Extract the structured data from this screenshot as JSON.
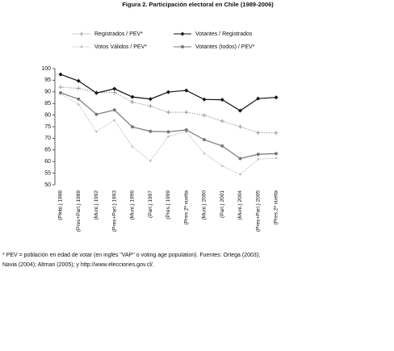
{
  "chart_data": {
    "type": "line",
    "title": "Figura 2. Participación electoral en Chile (1989-2006)",
    "categories": [
      "(Plebi.) 1988",
      "(Pres+Parl.) 1989",
      "(Muni.) 1992",
      "(Pres+Parl.) 1993",
      "(Muni.) 1996",
      "(Parl.) 1997",
      "(Pres.) 1999",
      "(Pres.2ª vuelta",
      "(Muni.) 2000",
      "(Parl.) 2001",
      "(Muni.) 2004",
      "(Pres+Parl.) 2005",
      "(Pres.2ª vuelta"
    ],
    "series": [
      {
        "name": "Registrados / PEV*",
        "color": "#999999",
        "dashed": true,
        "marker": "plus",
        "values": [
          92,
          91.5,
          89.8,
          89.7,
          85.6,
          83.9,
          81.2,
          81.2,
          79.9,
          77.4,
          75,
          72.4,
          72.3
        ]
      },
      {
        "name": "Votantes / Registrados",
        "color": "#111111",
        "dashed": false,
        "marker": "diamond",
        "values": [
          97.5,
          94.7,
          89.5,
          91.3,
          87.8,
          86.9,
          89.9,
          90.6,
          86.7,
          86.6,
          81.9,
          87.1,
          87.6
        ]
      },
      {
        "name": "Votos Válidos / PEV*",
        "color": "#bbbbbb",
        "dashed": true,
        "marker": "dot",
        "values": [
          89.2,
          84.6,
          72.9,
          77.8,
          66.4,
          60.3,
          70.8,
          72.8,
          63.5,
          58.1,
          54.5,
          61,
          61.5
        ]
      },
      {
        "name": "Votantes (todos) / PEV*",
        "color": "#777777",
        "dashed": false,
        "marker": "circle",
        "values": [
          89.6,
          86.9,
          80.3,
          82.2,
          74.9,
          73,
          72.8,
          73.6,
          69.4,
          66.7,
          61.3,
          63.1,
          63.4
        ]
      }
    ],
    "ylim": [
      50,
      100
    ],
    "yticks": [
      50,
      55,
      60,
      65,
      70,
      75,
      80,
      85,
      90,
      95,
      100
    ],
    "note": [
      "* PEV = población en edad de votar (en inglés \"VAP\" o voting age population).  Fuentes: Ortega (2003);",
      "Navia (2004); Altman (2005); y http://www.elecciones.gov.cl/."
    ]
  }
}
